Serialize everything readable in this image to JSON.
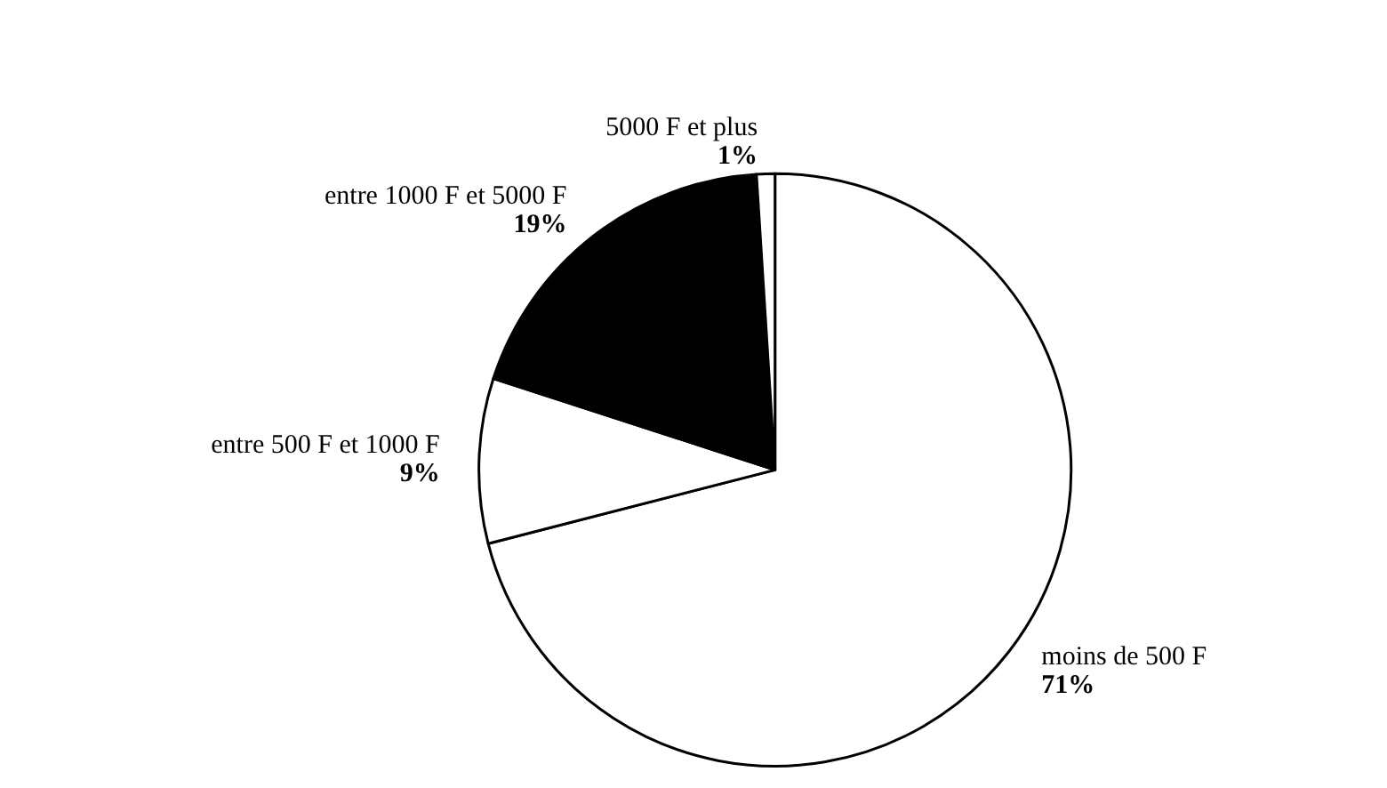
{
  "chart_data": {
    "type": "pie",
    "categories": [
      "moins de 500 F",
      "entre 500 F et 1000 F",
      "entre 1000 F et 5000 F",
      "5000 F et plus"
    ],
    "values": [
      71,
      9,
      19,
      1
    ],
    "colors": [
      "#ffffff",
      "#ffffff",
      "#000000",
      "#ffffff"
    ],
    "value_labels": [
      "71%",
      "9%",
      "19%",
      "1%"
    ],
    "legend": false
  }
}
